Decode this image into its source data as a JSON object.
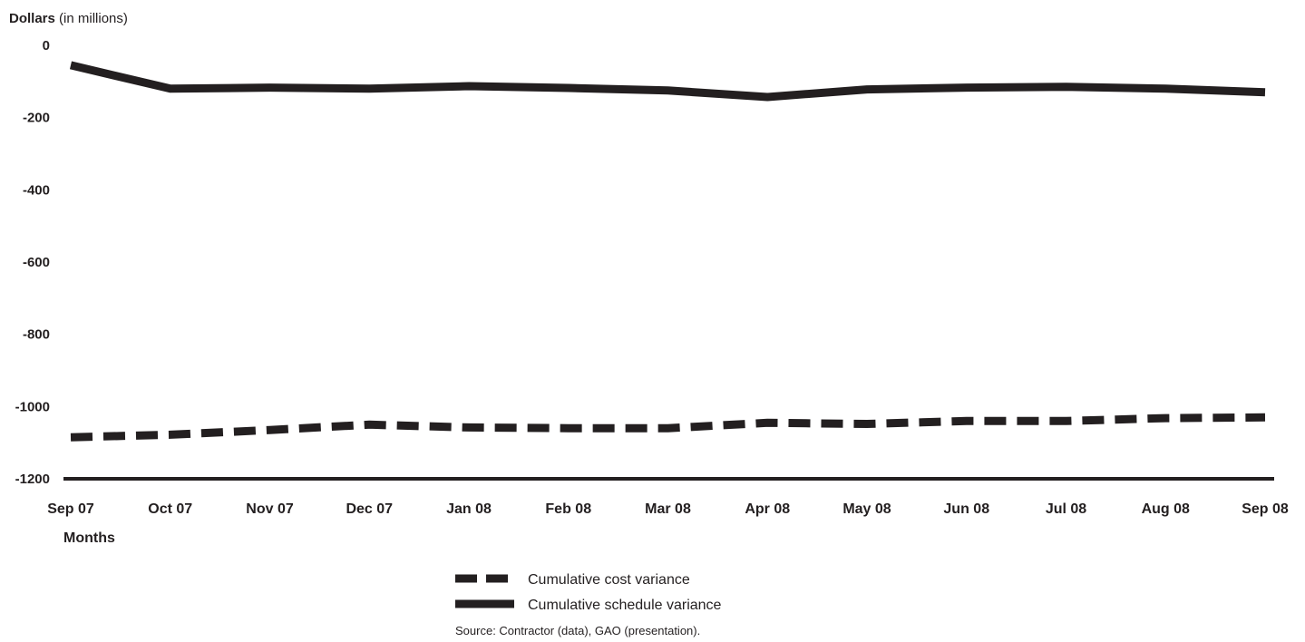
{
  "chart_data": {
    "type": "line",
    "ylabel": {
      "bold": "Dollars",
      "normal": " (in millions)"
    },
    "xlabel": "Months",
    "ylim": [
      -1200,
      0
    ],
    "yticks": [
      0,
      -200,
      -400,
      -600,
      -800,
      -1000,
      -1200
    ],
    "categories": [
      "Sep 07",
      "Oct 07",
      "Nov 07",
      "Dec 07",
      "Jan 08",
      "Feb 08",
      "Mar 08",
      "Apr 08",
      "May 08",
      "Jun 08",
      "Jul 08",
      "Aug 08",
      "Sep 08"
    ],
    "series": [
      {
        "name": "Cumulative cost variance",
        "style": "dashed",
        "color": "#231f20",
        "values": [
          -1085,
          -1078,
          -1065,
          -1050,
          -1058,
          -1060,
          -1060,
          -1045,
          -1048,
          -1040,
          -1040,
          -1032,
          -1030
        ]
      },
      {
        "name": "Cumulative schedule variance",
        "style": "solid",
        "color": "#231f20",
        "values": [
          -55,
          -120,
          -117,
          -120,
          -113,
          -118,
          -125,
          -143,
          -122,
          -117,
          -115,
          -120,
          -130
        ]
      }
    ],
    "legend_position": "bottom-center",
    "grid": false
  },
  "source": "Source: Contractor (data), GAO (presentation)."
}
